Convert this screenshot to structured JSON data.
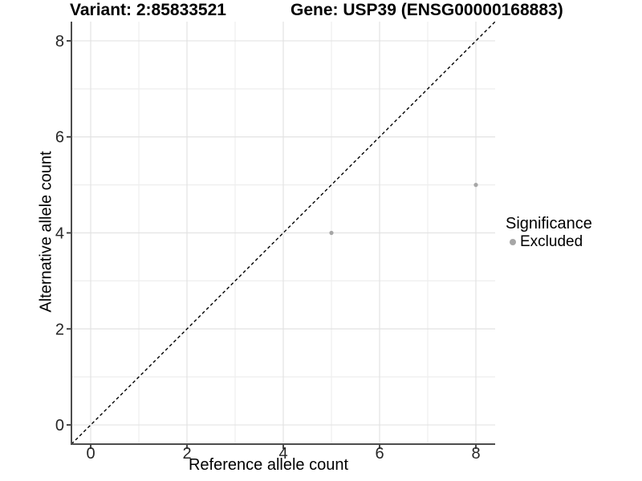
{
  "chart_data": {
    "type": "scatter",
    "title_left": "Variant: 2:85833521",
    "title_right": "Gene: USP39 (ENSG00000168883)",
    "xlabel": "Reference allele count",
    "ylabel": "Alternative allele count",
    "xlim": [
      -0.4,
      8.4
    ],
    "ylim": [
      -0.4,
      8.4
    ],
    "x_major_ticks": [
      0,
      2,
      4,
      6,
      8
    ],
    "x_minor_gridlines": [
      1,
      3,
      5,
      7
    ],
    "y_major_ticks": [
      0,
      2,
      4,
      6,
      8
    ],
    "y_minor_gridlines": [
      1,
      3,
      5,
      7
    ],
    "grid": "on",
    "identity_line": {
      "style": "dashed",
      "color": "#000000",
      "slope": 1,
      "intercept": 0
    },
    "series": [
      {
        "name": "Excluded",
        "color": "#a6a6a6",
        "points": [
          {
            "x": 5,
            "y": 4
          },
          {
            "x": 8,
            "y": 5
          }
        ]
      }
    ],
    "legend": {
      "title": "Significance",
      "position": "right",
      "entries": [
        {
          "label": "Excluded",
          "color": "#a6a6a6"
        }
      ]
    },
    "colors": {
      "background": "#ffffff",
      "grid_major": "#e3e3e3",
      "grid_minor": "#eeeeee",
      "axis_line": "#4d4d4d",
      "tick_mark": "#333333",
      "tick_label": "#262626"
    }
  }
}
